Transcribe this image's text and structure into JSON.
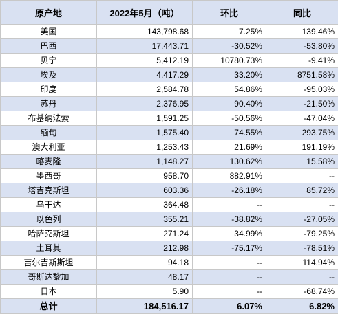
{
  "colors": {
    "header_bg": "#d9e1f2",
    "row_alt_bg": "#d9e1f2",
    "row_bg": "#ffffff",
    "border": "#c8c8c8",
    "text": "#000000"
  },
  "table": {
    "headers": [
      "原产地",
      "2022年5月（吨）",
      "环比",
      "同比"
    ],
    "rows": [
      [
        "美国",
        "143,798.68",
        "7.25%",
        "139.46%"
      ],
      [
        "巴西",
        "17,443.71",
        "-30.52%",
        "-53.80%"
      ],
      [
        "贝宁",
        "5,412.19",
        "10780.73%",
        "-9.41%"
      ],
      [
        "埃及",
        "4,417.29",
        "33.20%",
        "8751.58%"
      ],
      [
        "印度",
        "2,584.78",
        "54.86%",
        "-95.03%"
      ],
      [
        "苏丹",
        "2,376.95",
        "90.40%",
        "-21.50%"
      ],
      [
        "布基纳法索",
        "1,591.25",
        "-50.56%",
        "-47.04%"
      ],
      [
        "缅甸",
        "1,575.40",
        "74.55%",
        "293.75%"
      ],
      [
        "澳大利亚",
        "1,253.43",
        "21.69%",
        "191.19%"
      ],
      [
        "喀麦隆",
        "1,148.27",
        "130.62%",
        "15.58%"
      ],
      [
        "墨西哥",
        "958.70",
        "882.91%",
        "--"
      ],
      [
        "塔吉克斯坦",
        "603.36",
        "-26.18%",
        "85.72%"
      ],
      [
        "乌干达",
        "364.48",
        "--",
        "--"
      ],
      [
        "以色列",
        "355.21",
        "-38.82%",
        "-27.05%"
      ],
      [
        "哈萨克斯坦",
        "271.24",
        "34.99%",
        "-79.25%"
      ],
      [
        "土耳其",
        "212.98",
        "-75.17%",
        "-78.51%"
      ],
      [
        "吉尔吉斯斯坦",
        "94.18",
        "--",
        "114.94%"
      ],
      [
        "哥斯达黎加",
        "48.17",
        "--",
        "--"
      ],
      [
        "日本",
        "5.90",
        "--",
        "-68.74%"
      ]
    ],
    "total": [
      "总计",
      "184,516.17",
      "6.07%",
      "6.82%"
    ]
  }
}
